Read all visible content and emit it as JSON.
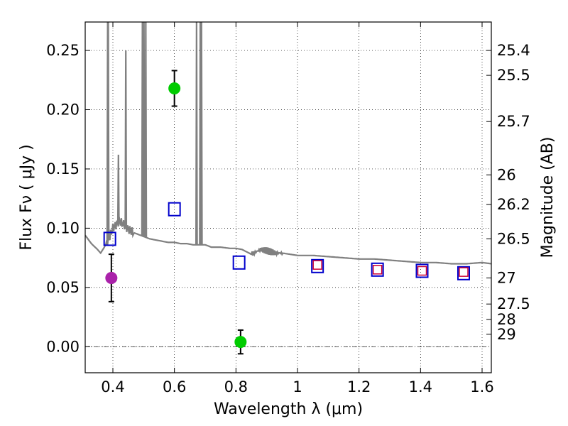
{
  "chart_data": {
    "type": "scatter",
    "xlabel": "Wavelength  λ (μm)",
    "ylabel": "Flux  Fν  ( μJy )",
    "ylabel_right": "Magnitude (AB)",
    "xlim": [
      0.31,
      1.63
    ],
    "ylim": [
      -0.022,
      0.274
    ],
    "grid": true,
    "x_ticks": [
      0.4,
      0.6,
      0.8,
      1.0,
      1.2,
      1.4,
      1.6
    ],
    "x_tick_labels": [
      "0.4",
      "0.6",
      "0.8",
      "1",
      "1.2",
      "1.4",
      "1.6"
    ],
    "y_ticks": [
      0.0,
      0.05,
      0.1,
      0.15,
      0.2,
      0.25
    ],
    "y_tick_labels": [
      "0.00",
      "0.05",
      "0.10",
      "0.15",
      "0.20",
      "0.25"
    ],
    "mag_ticks": [
      {
        "label": "25.4",
        "flux": 0.25
      },
      {
        "label": "25.5",
        "flux": 0.229
      },
      {
        "label": "25.7",
        "flux": 0.19
      },
      {
        "label": "26",
        "flux": 0.145
      },
      {
        "label": "26.2",
        "flux": 0.12
      },
      {
        "label": "26.5",
        "flux": 0.091
      },
      {
        "label": "27",
        "flux": 0.058
      },
      {
        "label": "27.5",
        "flux": 0.036
      },
      {
        "label": "28",
        "flux": 0.023
      },
      {
        "label": "29",
        "flux": 0.0105
      }
    ],
    "series": [
      {
        "name": "green points",
        "marker": "circle",
        "color": "#00cc00",
        "points": [
          {
            "x": 0.6,
            "y": 0.218,
            "yerr": 0.015
          },
          {
            "x": 0.815,
            "y": 0.004,
            "yerr": 0.01
          }
        ]
      },
      {
        "name": "magenta point",
        "marker": "circle",
        "color": "#aa22aa",
        "points": [
          {
            "x": 0.395,
            "y": 0.058,
            "yerr": 0.02
          }
        ]
      },
      {
        "name": "blue squares",
        "marker": "square",
        "color": "#0000cc",
        "points": [
          {
            "x": 0.39,
            "y": 0.091
          },
          {
            "x": 0.6,
            "y": 0.116
          },
          {
            "x": 0.81,
            "y": 0.071
          },
          {
            "x": 1.065,
            "y": 0.068
          },
          {
            "x": 1.26,
            "y": 0.065
          },
          {
            "x": 1.405,
            "y": 0.064
          },
          {
            "x": 1.54,
            "y": 0.062
          }
        ]
      },
      {
        "name": "red squares",
        "marker": "square-small",
        "color": "#cc0033",
        "points": [
          {
            "x": 1.065,
            "y": 0.069
          },
          {
            "x": 1.26,
            "y": 0.065
          },
          {
            "x": 1.405,
            "y": 0.064
          },
          {
            "x": 1.54,
            "y": 0.063
          }
        ]
      }
    ],
    "model_spectrum": {
      "name": "template spectrum",
      "color": "#808080",
      "continuum": [
        [
          0.31,
          0.094
        ],
        [
          0.33,
          0.087
        ],
        [
          0.35,
          0.082
        ],
        [
          0.36,
          0.079
        ],
        [
          0.37,
          0.083
        ],
        [
          0.38,
          0.088
        ],
        [
          0.39,
          0.093
        ],
        [
          0.4,
          0.1
        ],
        [
          0.42,
          0.106
        ],
        [
          0.44,
          0.102
        ],
        [
          0.46,
          0.097
        ],
        [
          0.48,
          0.095
        ],
        [
          0.5,
          0.093
        ],
        [
          0.52,
          0.091
        ],
        [
          0.54,
          0.09
        ],
        [
          0.56,
          0.089
        ],
        [
          0.58,
          0.088
        ],
        [
          0.6,
          0.088
        ],
        [
          0.62,
          0.087
        ],
        [
          0.64,
          0.087
        ],
        [
          0.66,
          0.086
        ],
        [
          0.7,
          0.086
        ],
        [
          0.72,
          0.084
        ],
        [
          0.75,
          0.084
        ],
        [
          0.78,
          0.083
        ],
        [
          0.8,
          0.083
        ],
        [
          0.82,
          0.082
        ],
        [
          0.85,
          0.078
        ],
        [
          0.88,
          0.082
        ],
        [
          0.9,
          0.081
        ],
        [
          0.93,
          0.079
        ],
        [
          0.95,
          0.079
        ],
        [
          1.0,
          0.077
        ],
        [
          1.05,
          0.077
        ],
        [
          1.1,
          0.076
        ],
        [
          1.15,
          0.075
        ],
        [
          1.2,
          0.074
        ],
        [
          1.25,
          0.074
        ],
        [
          1.3,
          0.073
        ],
        [
          1.35,
          0.072
        ],
        [
          1.4,
          0.071
        ],
        [
          1.45,
          0.071
        ],
        [
          1.5,
          0.07
        ],
        [
          1.55,
          0.07
        ],
        [
          1.6,
          0.071
        ],
        [
          1.63,
          0.07
        ]
      ],
      "emission_lines": [
        {
          "x": 0.383,
          "peak": 0.274
        },
        {
          "x": 0.385,
          "peak": 0.274
        },
        {
          "x": 0.418,
          "peak": 0.162
        },
        {
          "x": 0.442,
          "peak": 0.25
        },
        {
          "x": 0.496,
          "peak": 0.274
        },
        {
          "x": 0.501,
          "peak": 0.274
        },
        {
          "x": 0.507,
          "peak": 0.274
        },
        {
          "x": 0.672,
          "peak": 0.274
        },
        {
          "x": 0.684,
          "peak": 0.274
        },
        {
          "x": 0.688,
          "peak": 0.274
        }
      ]
    }
  }
}
